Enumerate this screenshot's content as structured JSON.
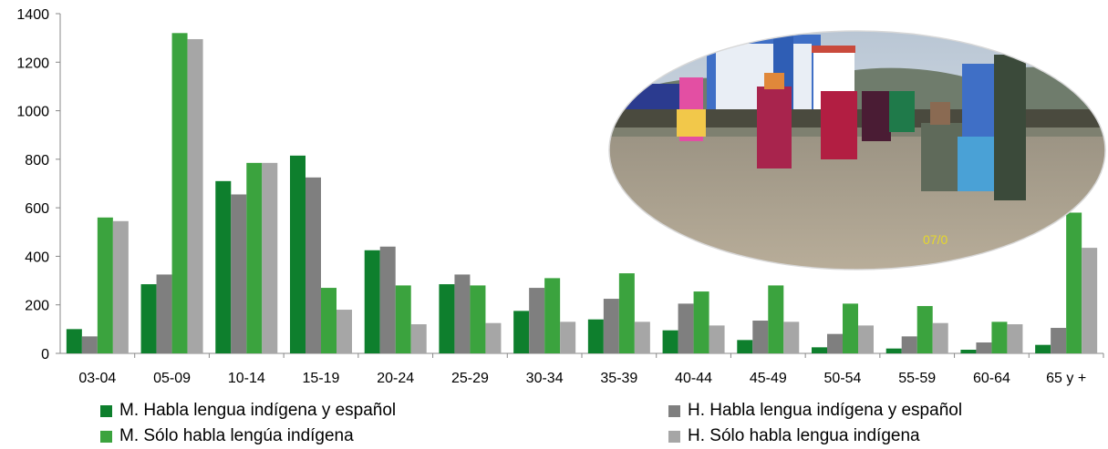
{
  "chart_data": {
    "type": "bar",
    "categories": [
      "03-04",
      "05-09",
      "10-14",
      "15-19",
      "20-24",
      "25-29",
      "30-34",
      "35-39",
      "40-44",
      "45-49",
      "50-54",
      "55-59",
      "60-64",
      "65 y +"
    ],
    "ylim": [
      0,
      1400
    ],
    "yticks": [
      "0",
      "200",
      "400",
      "600",
      "800",
      "1000",
      "1200",
      "1400"
    ],
    "series": [
      {
        "name": "M. Habla lengua indígena y español",
        "color": "#0e7f2d",
        "values": [
          100,
          285,
          710,
          815,
          425,
          285,
          175,
          140,
          95,
          55,
          25,
          20,
          15,
          35
        ]
      },
      {
        "name": "H. Habla lengua indígena y español",
        "color": "#7f7f7f",
        "values": [
          70,
          325,
          655,
          725,
          440,
          325,
          270,
          225,
          205,
          135,
          80,
          70,
          45,
          105
        ]
      },
      {
        "name": "M. Sólo habla lengúa indígena",
        "color": "#3ba33e",
        "values": [
          560,
          1320,
          785,
          270,
          280,
          280,
          310,
          330,
          255,
          280,
          205,
          195,
          130,
          580
        ]
      },
      {
        "name": "H. Sólo habla lengua indígena",
        "color": "#a6a6a6",
        "values": [
          545,
          1295,
          785,
          180,
          120,
          125,
          130,
          130,
          115,
          130,
          115,
          125,
          120,
          435
        ]
      }
    ],
    "legend_position": "bottom",
    "grid": false
  },
  "photo": {
    "icon": "festival-dance-photo",
    "date_stamp": "07/0"
  }
}
